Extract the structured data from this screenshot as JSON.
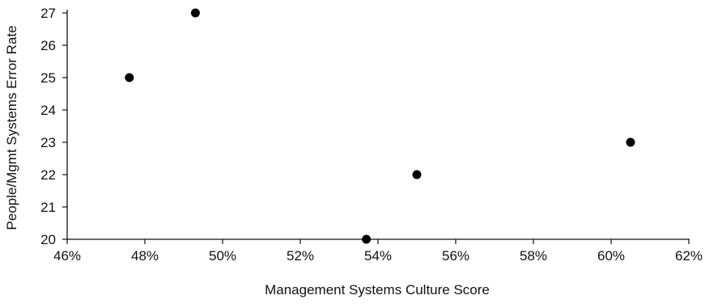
{
  "chart_data": {
    "type": "scatter",
    "title": "",
    "xlabel": "Management Systems Culture Score",
    "ylabel": "People/Mgmt Systems Error Rate",
    "xlim": [
      46,
      62
    ],
    "ylim": [
      20,
      27
    ],
    "x_ticks": [
      46,
      48,
      50,
      52,
      54,
      56,
      58,
      60,
      62
    ],
    "x_tick_labels": [
      "46%",
      "48%",
      "50%",
      "52%",
      "54%",
      "56%",
      "58%",
      "60%",
      "62%"
    ],
    "y_ticks": [
      20,
      21,
      22,
      23,
      24,
      25,
      26,
      27
    ],
    "y_tick_labels": [
      "20",
      "21",
      "22",
      "23",
      "24",
      "25",
      "26",
      "27"
    ],
    "grid": false,
    "points": [
      {
        "x": 47.6,
        "y": 25
      },
      {
        "x": 49.3,
        "y": 27
      },
      {
        "x": 53.7,
        "y": 20
      },
      {
        "x": 55.0,
        "y": 22
      },
      {
        "x": 60.5,
        "y": 23
      }
    ],
    "marker_color": "#000000"
  }
}
